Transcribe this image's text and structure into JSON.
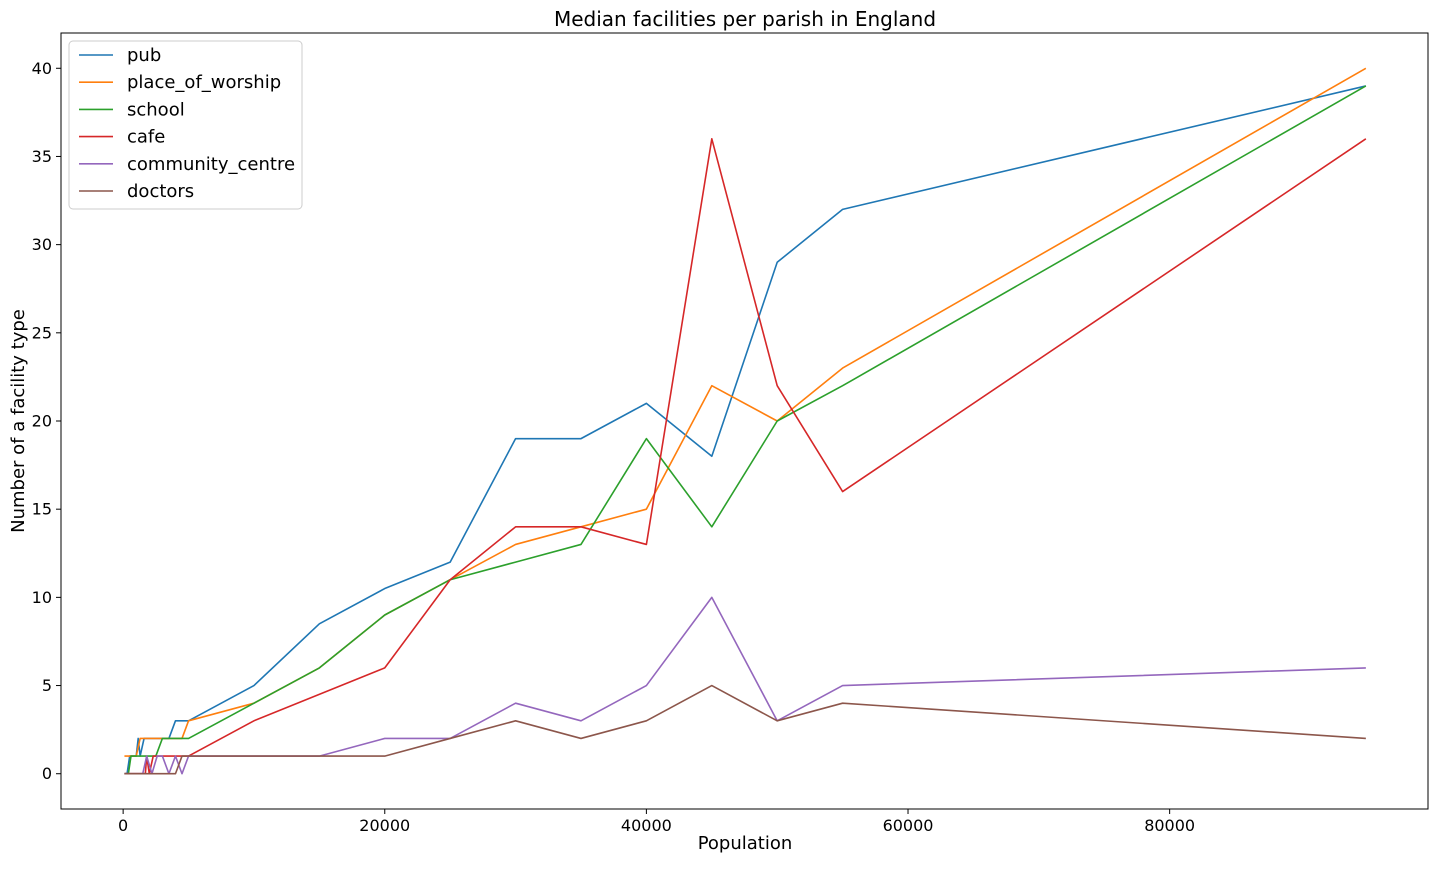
{
  "chart_data": {
    "type": "line",
    "title": "Median facilities per parish in England",
    "xlabel": "Population",
    "ylabel": "Number of a facility type",
    "xlim": [
      -4750,
      99750
    ],
    "ylim": [
      -2,
      42
    ],
    "x_ticks": [
      0,
      20000,
      40000,
      60000,
      80000
    ],
    "x_tick_labels": [
      "0",
      "20000",
      "40000",
      "60000",
      "80000"
    ],
    "y_ticks": [
      0,
      5,
      10,
      15,
      20,
      25,
      30,
      35,
      40
    ],
    "y_tick_labels": [
      "0",
      "5",
      "10",
      "15",
      "20",
      "25",
      "30",
      "35",
      "40"
    ],
    "grid": false,
    "legend_position": "top-left",
    "series": [
      {
        "name": "pub",
        "color": "#1f77b4",
        "x": [
          100,
          300,
          500,
          750,
          1000,
          1150,
          1300,
          1600,
          2000,
          2500,
          3000,
          3500,
          4000,
          5000,
          10000,
          15000,
          20000,
          25000,
          30000,
          35000,
          40000,
          45000,
          50000,
          55000,
          95000
        ],
        "y": [
          0,
          0,
          1,
          1,
          1,
          2,
          1,
          2,
          2,
          2,
          2,
          2,
          3,
          3,
          5,
          8.5,
          10.5,
          12,
          19,
          19,
          21,
          18,
          29,
          32,
          39
        ]
      },
      {
        "name": "place_of_worship",
        "color": "#ff7f0e",
        "x": [
          100,
          500,
          1000,
          1300,
          1600,
          2000,
          2500,
          3000,
          3500,
          4000,
          4500,
          5000,
          10000,
          15000,
          20000,
          25000,
          30000,
          35000,
          40000,
          45000,
          50000,
          55000,
          95000
        ],
        "y": [
          1,
          1,
          1,
          2,
          2,
          2,
          2,
          2,
          2,
          2,
          2,
          3,
          4,
          6,
          9,
          11,
          13,
          14,
          15,
          22,
          20,
          23,
          40
        ]
      },
      {
        "name": "school",
        "color": "#2ca02c",
        "x": [
          100,
          400,
          600,
          1000,
          1500,
          2000,
          2500,
          3000,
          3500,
          4000,
          5000,
          10000,
          15000,
          20000,
          25000,
          30000,
          35000,
          40000,
          45000,
          50000,
          55000,
          95000
        ],
        "y": [
          0,
          0,
          1,
          1,
          1,
          1,
          1,
          2,
          2,
          2,
          2,
          4,
          6,
          9,
          11,
          12,
          13,
          19,
          14,
          20,
          22,
          39
        ]
      },
      {
        "name": "cafe",
        "color": "#d62728",
        "x": [
          100,
          1000,
          1700,
          1800,
          2000,
          2300,
          2600,
          3000,
          3500,
          4000,
          4500,
          5000,
          10000,
          20000,
          25000,
          30000,
          35000,
          40000,
          45000,
          50000,
          55000,
          95000
        ],
        "y": [
          0,
          0,
          0,
          1,
          0,
          1,
          1,
          1,
          1,
          1,
          1,
          1,
          3,
          6,
          11,
          14,
          14,
          13,
          36,
          22,
          16,
          36
        ]
      },
      {
        "name": "community_centre",
        "color": "#9467bd",
        "x": [
          100,
          1500,
          1800,
          2200,
          2600,
          3000,
          3500,
          4000,
          4500,
          5000,
          10000,
          15000,
          20000,
          25000,
          30000,
          35000,
          40000,
          45000,
          50000,
          55000,
          95000
        ],
        "y": [
          0,
          0,
          1,
          0,
          1,
          1,
          0,
          1,
          0,
          1,
          1,
          1,
          2,
          2,
          4,
          3,
          5,
          10,
          3,
          5,
          6
        ]
      },
      {
        "name": "doctors",
        "color": "#8c564b",
        "x": [
          100,
          2000,
          3000,
          4000,
          4500,
          5000,
          10000,
          15000,
          20000,
          25000,
          30000,
          35000,
          40000,
          45000,
          50000,
          55000,
          95000
        ],
        "y": [
          0,
          0,
          0,
          0,
          1,
          1,
          1,
          1,
          1,
          2,
          3,
          2,
          3,
          5,
          3,
          4,
          2
        ]
      }
    ]
  }
}
